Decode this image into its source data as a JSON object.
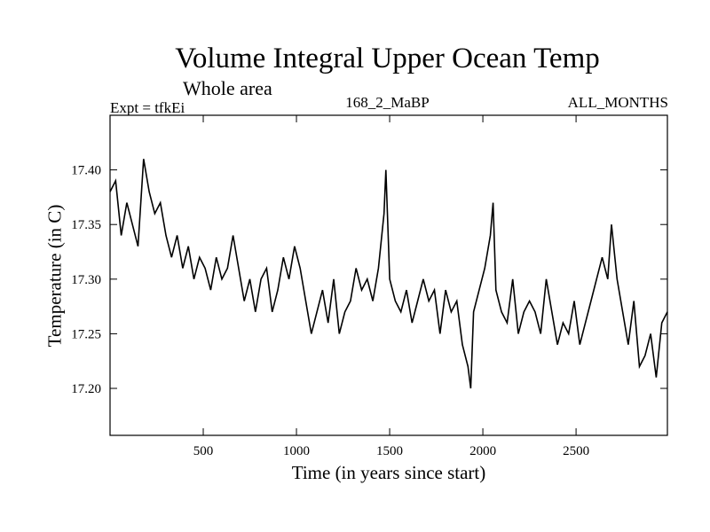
{
  "chart_data": {
    "type": "line",
    "title": "Volume Integral Upper Ocean Temp",
    "subtitle": "Whole area",
    "annotations": {
      "left": "Expt = tfkEi",
      "center": "168_2_MaBP",
      "right": "ALL_MONTHS"
    },
    "xlabel": "Time (in years since start)",
    "ylabel": "Temperature (in C)",
    "xlim": [
      0,
      2990
    ],
    "ylim": [
      17.157,
      17.45
    ],
    "xticks": [
      500,
      1000,
      1500,
      2000,
      2500
    ],
    "xtick_labels": [
      "500",
      "1000",
      "1500",
      "2000",
      "2500"
    ],
    "yticks": [
      17.2,
      17.25,
      17.3,
      17.35,
      17.4
    ],
    "ytick_labels": [
      "17.20",
      "17.25",
      "17.30",
      "17.35",
      "17.40"
    ],
    "grid": false,
    "series": [
      {
        "color": "#000000",
        "x": [
          0,
          30,
          60,
          90,
          120,
          150,
          180,
          210,
          240,
          270,
          300,
          330,
          360,
          390,
          420,
          450,
          480,
          510,
          540,
          570,
          600,
          630,
          660,
          690,
          720,
          750,
          780,
          810,
          840,
          870,
          900,
          930,
          960,
          990,
          1020,
          1050,
          1080,
          1110,
          1140,
          1170,
          1200,
          1230,
          1260,
          1290,
          1320,
          1350,
          1380,
          1410,
          1440,
          1470,
          1480,
          1500,
          1530,
          1560,
          1590,
          1620,
          1650,
          1680,
          1710,
          1740,
          1770,
          1800,
          1830,
          1860,
          1890,
          1920,
          1935,
          1950,
          1980,
          2010,
          2040,
          2055,
          2070,
          2100,
          2130,
          2160,
          2190,
          2220,
          2250,
          2280,
          2310,
          2340,
          2370,
          2400,
          2430,
          2460,
          2490,
          2520,
          2550,
          2580,
          2610,
          2640,
          2670,
          2690,
          2720,
          2750,
          2780,
          2810,
          2840,
          2870,
          2900,
          2930,
          2960,
          2990
        ],
        "y": [
          17.38,
          17.39,
          17.34,
          17.37,
          17.35,
          17.33,
          17.41,
          17.38,
          17.36,
          17.37,
          17.34,
          17.32,
          17.34,
          17.31,
          17.33,
          17.3,
          17.32,
          17.31,
          17.29,
          17.32,
          17.3,
          17.31,
          17.34,
          17.31,
          17.28,
          17.3,
          17.27,
          17.3,
          17.31,
          17.27,
          17.29,
          17.32,
          17.3,
          17.33,
          17.31,
          17.28,
          17.25,
          17.27,
          17.29,
          17.26,
          17.3,
          17.25,
          17.27,
          17.28,
          17.31,
          17.29,
          17.3,
          17.28,
          17.31,
          17.36,
          17.4,
          17.3,
          17.28,
          17.27,
          17.29,
          17.26,
          17.28,
          17.3,
          17.28,
          17.29,
          17.25,
          17.29,
          17.27,
          17.28,
          17.24,
          17.22,
          17.2,
          17.27,
          17.29,
          17.31,
          17.34,
          17.37,
          17.29,
          17.27,
          17.26,
          17.3,
          17.25,
          17.27,
          17.28,
          17.27,
          17.25,
          17.3,
          17.27,
          17.24,
          17.26,
          17.25,
          17.28,
          17.24,
          17.26,
          17.28,
          17.3,
          17.32,
          17.3,
          17.35,
          17.3,
          17.27,
          17.24,
          17.28,
          17.22,
          17.23,
          17.25,
          17.21,
          17.26,
          17.27
        ]
      }
    ]
  }
}
